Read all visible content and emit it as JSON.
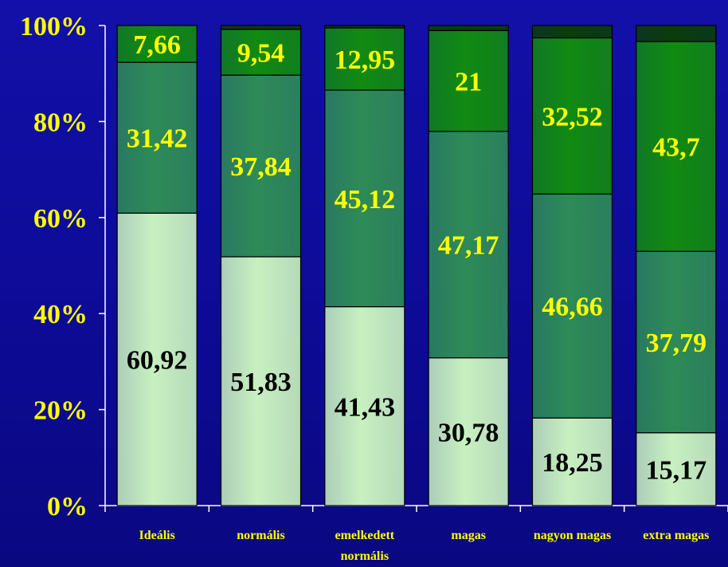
{
  "chart_data": {
    "type": "bar",
    "stacked": true,
    "normalized": true,
    "categories": [
      [
        "Ideális"
      ],
      [
        "normális"
      ],
      [
        "emelkedett",
        "normális"
      ],
      [
        "magas"
      ],
      [
        "nagyon magas"
      ],
      [
        "extra magas"
      ]
    ],
    "series": [
      {
        "values": [
          60.92,
          51.83,
          41.43,
          30.78,
          18.25,
          15.17
        ],
        "labels": [
          "60,92",
          "51,83",
          "41,43",
          "30,78",
          "18,25",
          "15,17"
        ],
        "color": "#c8f0c0",
        "label_color": "#000000"
      },
      {
        "values": [
          31.42,
          37.84,
          45.12,
          47.17,
          46.66,
          37.79
        ],
        "labels": [
          "31,42",
          "37,84",
          "45,12",
          "47,17",
          "46,66",
          "37,79"
        ],
        "color": "#2e8b57",
        "label_color": "#ffff00"
      },
      {
        "values": [
          7.66,
          9.54,
          12.95,
          21,
          32.52,
          43.7
        ],
        "labels": [
          "7,66",
          "9,54",
          "12,95",
          "21",
          "32,52",
          "43,7"
        ],
        "color": "#118a11",
        "label_color": "#ffff00"
      },
      {
        "values": [
          0,
          0.79,
          0.5,
          1.05,
          2.57,
          3.34
        ],
        "labels": [
          "",
          "",
          "",
          "",
          "",
          ""
        ],
        "color": "#0a3d0a",
        "label_color": "#ffff00"
      }
    ],
    "y_ticks": [
      "0%",
      "20%",
      "40%",
      "60%",
      "80%",
      "100%"
    ],
    "ylim": [
      0,
      100
    ],
    "legend": "none",
    "grid": false,
    "title": "",
    "xlabel": "",
    "ylabel": ""
  }
}
